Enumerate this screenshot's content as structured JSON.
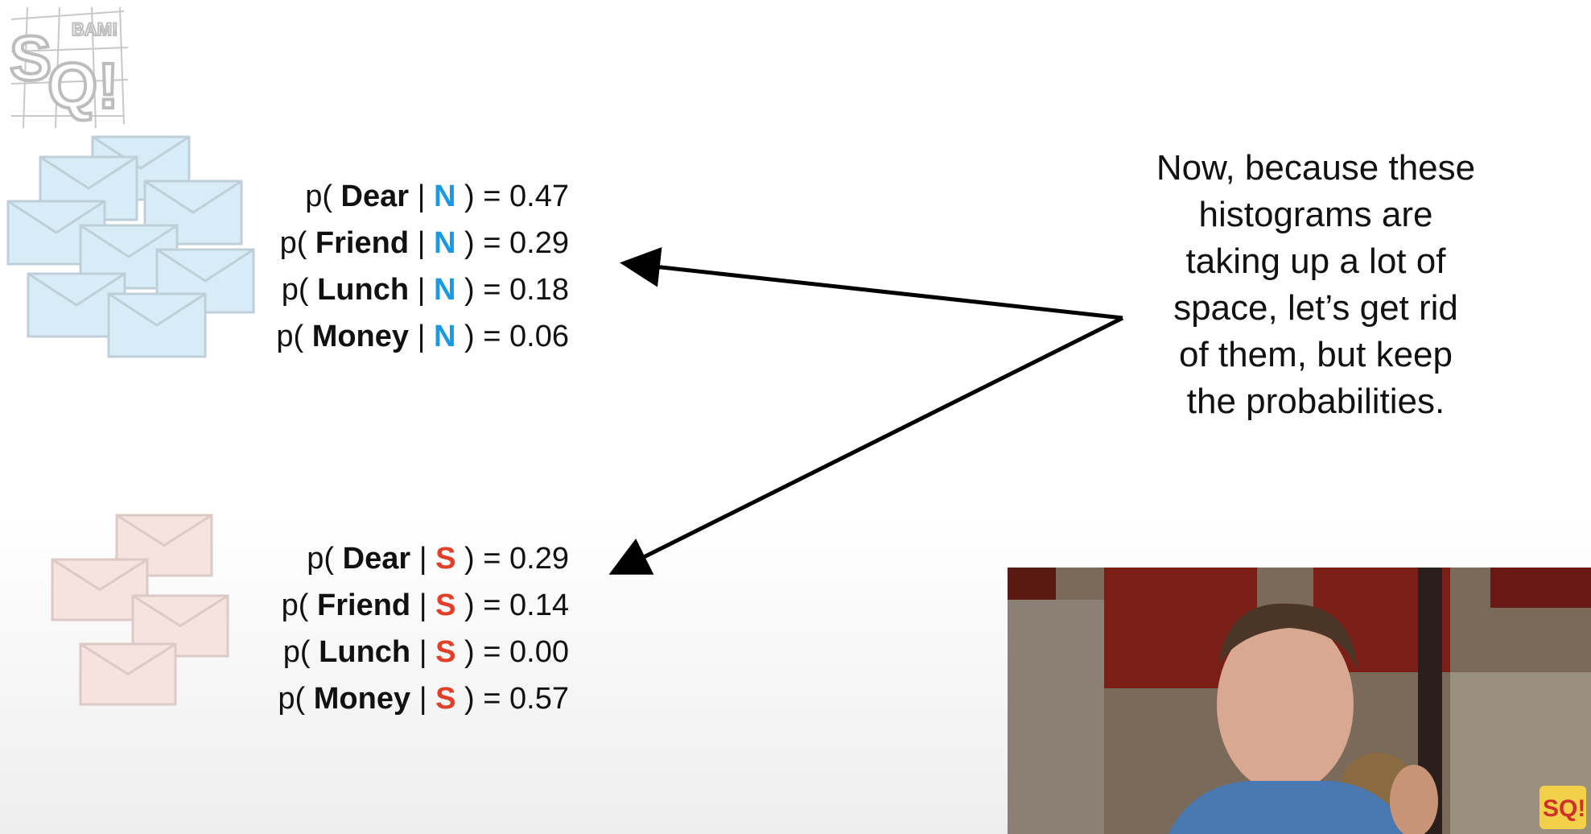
{
  "logo": {
    "text": "StatQuest",
    "icon": "statquest-logo-icon"
  },
  "normal_probs": [
    {
      "prefix": "p(",
      "word": "Dear",
      "cls": "N",
      "value": "= 0.47"
    },
    {
      "prefix": "p(",
      "word": "Friend",
      "cls": "N",
      "value": "= 0.29"
    },
    {
      "prefix": "p(",
      "word": "Lunch",
      "cls": "N",
      "value": "= 0.18"
    },
    {
      "prefix": "p(",
      "word": "Money",
      "cls": "N",
      "value": "= 0.06"
    }
  ],
  "spam_probs": [
    {
      "prefix": "p(",
      "word": "Dear",
      "cls": "S",
      "value": "= 0.29"
    },
    {
      "prefix": "p(",
      "word": "Friend",
      "cls": "S",
      "value": "= 0.14"
    },
    {
      "prefix": "p(",
      "word": "Lunch",
      "cls": "S",
      "value": "= 0.00"
    },
    {
      "prefix": "p(",
      "word": "Money",
      "cls": "S",
      "value": "= 0.57"
    }
  ],
  "caption": {
    "lines": [
      "Now, because these",
      "histograms are",
      "taking up a lot of",
      "space, let’s get rid",
      "of them, but keep",
      "the probabilities."
    ]
  },
  "colors": {
    "normal": "#1a9ae0",
    "spam": "#e0402a",
    "normal_envelope": "#d8ecf8",
    "spam_envelope": "#f6e2de"
  },
  "webcam": {
    "icon": "presenter-video-feed"
  },
  "badge": {
    "icon": "statquest-badge-icon"
  }
}
